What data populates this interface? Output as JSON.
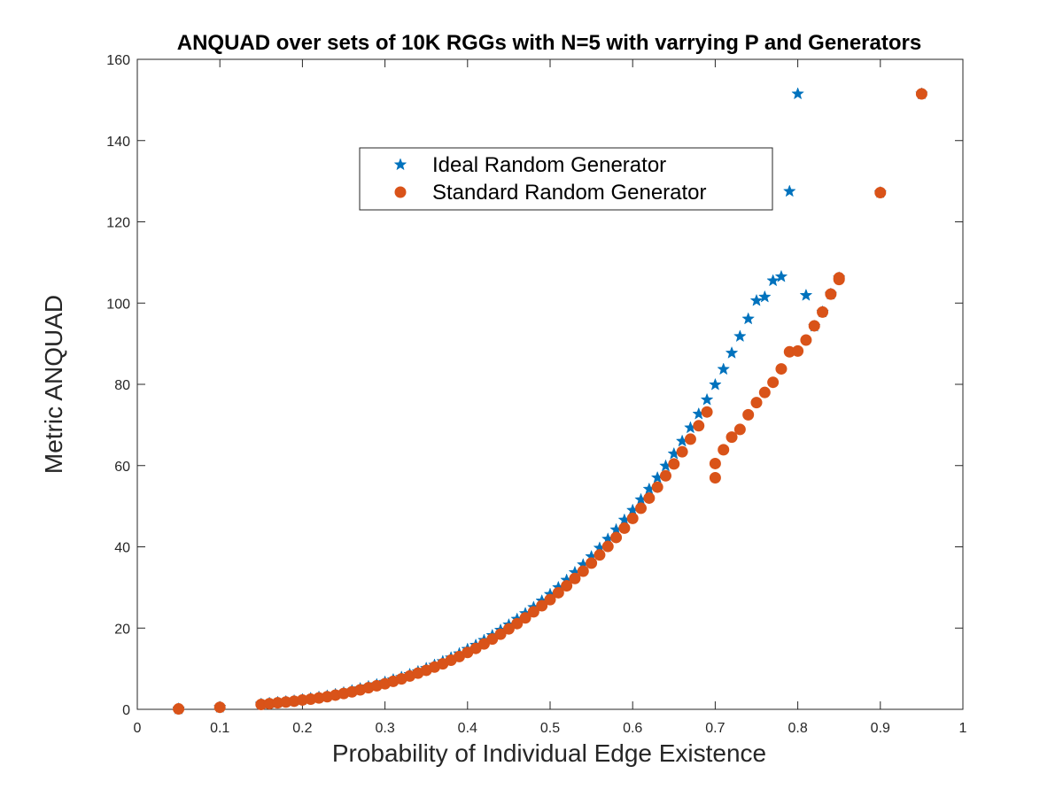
{
  "chart_data": {
    "type": "scatter",
    "title": "ANQUAD over sets of 10K RGGs with N=5 with varrying P and Generators",
    "xlabel": "Probability of Individual Edge Existence",
    "ylabel": "Metric ANQUAD",
    "xlim": [
      0,
      1
    ],
    "ylim": [
      0,
      160
    ],
    "x_ticks": [
      0,
      0.1,
      0.2,
      0.3,
      0.4,
      0.5,
      0.6,
      0.7,
      0.8,
      0.9,
      1
    ],
    "x_tick_labels": [
      "0",
      "0.1",
      "0.2",
      "0.3",
      "0.4",
      "0.5",
      "0.6",
      "0.7",
      "0.8",
      "0.9",
      "1"
    ],
    "y_ticks": [
      0,
      20,
      40,
      60,
      80,
      100,
      120,
      140,
      160
    ],
    "y_tick_labels": [
      "0",
      "20",
      "40",
      "60",
      "80",
      "100",
      "120",
      "140",
      "160"
    ],
    "grid": false,
    "legend_position": "upper-center",
    "series": [
      {
        "name": "Ideal Random Generator",
        "marker": "star",
        "color": "#0072BD",
        "x": [
          0.05,
          0.1,
          0.15,
          0.16,
          0.17,
          0.18,
          0.19,
          0.2,
          0.21,
          0.22,
          0.23,
          0.24,
          0.25,
          0.26,
          0.27,
          0.28,
          0.29,
          0.3,
          0.31,
          0.32,
          0.33,
          0.34,
          0.35,
          0.36,
          0.37,
          0.38,
          0.39,
          0.4,
          0.41,
          0.42,
          0.43,
          0.44,
          0.45,
          0.46,
          0.47,
          0.48,
          0.49,
          0.5,
          0.51,
          0.52,
          0.53,
          0.54,
          0.55,
          0.56,
          0.57,
          0.58,
          0.59,
          0.6,
          0.61,
          0.62,
          0.63,
          0.64,
          0.65,
          0.66,
          0.67,
          0.68,
          0.69,
          0.7,
          0.71,
          0.72,
          0.73,
          0.74,
          0.75,
          0.76,
          0.77,
          0.78,
          0.79,
          0.8,
          0.81,
          0.82,
          0.83,
          0.84,
          0.85,
          0.9,
          0.95
        ],
        "y": [
          0.1,
          0.5,
          1.3,
          1.5,
          1.7,
          1.9,
          2.1,
          2.4,
          2.7,
          3.0,
          3.3,
          3.7,
          4.1,
          4.6,
          5.1,
          5.6,
          6.1,
          6.7,
          7.3,
          7.9,
          8.6,
          9.3,
          10.1,
          10.9,
          11.8,
          12.7,
          13.7,
          14.8,
          15.8,
          17.0,
          18.2,
          19.5,
          20.8,
          22.2,
          23.6,
          25.1,
          26.7,
          28.3,
          30.0,
          31.8,
          33.7,
          35.6,
          37.6,
          39.7,
          41.9,
          44.2,
          46.6,
          49.0,
          51.6,
          54.2,
          57.0,
          59.9,
          62.9,
          66.0,
          69.3,
          72.7,
          76.2,
          79.9,
          83.7,
          87.7,
          91.8,
          96.1,
          100.6,
          101.5,
          105.5,
          106.5,
          127.5,
          151.5,
          101.9,
          94.3,
          97.8,
          102.2,
          106.2,
          127.2,
          151.5
        ]
      },
      {
        "name": "Standard Random Generator",
        "marker": "circle",
        "color": "#D95319",
        "x": [
          0.05,
          0.1,
          0.15,
          0.16,
          0.17,
          0.18,
          0.19,
          0.2,
          0.21,
          0.22,
          0.23,
          0.24,
          0.25,
          0.26,
          0.27,
          0.28,
          0.29,
          0.3,
          0.31,
          0.32,
          0.33,
          0.34,
          0.35,
          0.36,
          0.37,
          0.38,
          0.39,
          0.4,
          0.41,
          0.42,
          0.43,
          0.44,
          0.45,
          0.46,
          0.47,
          0.48,
          0.49,
          0.5,
          0.51,
          0.52,
          0.53,
          0.54,
          0.55,
          0.56,
          0.57,
          0.58,
          0.59,
          0.6,
          0.61,
          0.62,
          0.63,
          0.64,
          0.65,
          0.66,
          0.67,
          0.68,
          0.69,
          0.7,
          0.7,
          0.71,
          0.72,
          0.73,
          0.74,
          0.75,
          0.76,
          0.77,
          0.78,
          0.79,
          0.8,
          0.81,
          0.82,
          0.83,
          0.84,
          0.85,
          0.85,
          0.9,
          0.95
        ],
        "y": [
          0.1,
          0.5,
          1.2,
          1.4,
          1.6,
          1.8,
          2.0,
          2.3,
          2.5,
          2.8,
          3.1,
          3.5,
          3.9,
          4.3,
          4.8,
          5.3,
          5.8,
          6.3,
          6.9,
          7.5,
          8.2,
          8.9,
          9.6,
          10.4,
          11.2,
          12.1,
          13.0,
          14.0,
          15.0,
          16.1,
          17.3,
          18.5,
          19.8,
          21.1,
          22.5,
          24.0,
          25.5,
          27.0,
          28.7,
          30.4,
          32.2,
          34.0,
          36.0,
          38.0,
          40.1,
          42.3,
          44.6,
          47.0,
          49.5,
          52.0,
          54.7,
          57.5,
          60.4,
          63.4,
          66.5,
          69.8,
          73.2,
          57.0,
          60.5,
          63.9,
          67.0,
          68.9,
          72.5,
          75.5,
          78.0,
          80.5,
          83.8,
          88.0,
          88.2,
          90.9,
          94.4,
          97.8,
          102.2,
          105.8,
          106.2,
          127.2,
          151.5
        ]
      }
    ]
  }
}
